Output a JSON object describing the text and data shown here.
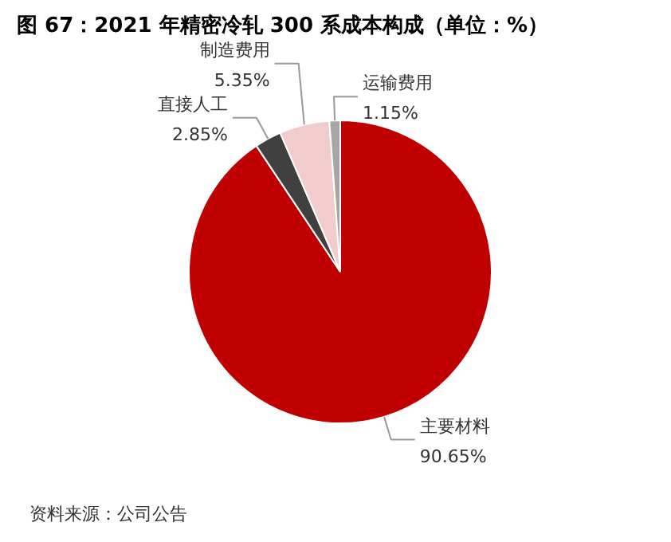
{
  "chart_data": {
    "type": "pie",
    "title": "图 67：2021 年精密冷轧 300 系成本构成（单位：%）",
    "categories": [
      "主要材料",
      "直接人工",
      "制造费用",
      "运输费用"
    ],
    "values": [
      90.65,
      2.85,
      5.35,
      1.15
    ],
    "colors": [
      "#c00000",
      "#404040",
      "#f2cccc",
      "#a6a6a6"
    ],
    "value_labels": [
      "90.65%",
      "2.85%",
      "5.35%",
      "1.15%"
    ],
    "annotations": [
      "资料来源：公司公告"
    ]
  }
}
